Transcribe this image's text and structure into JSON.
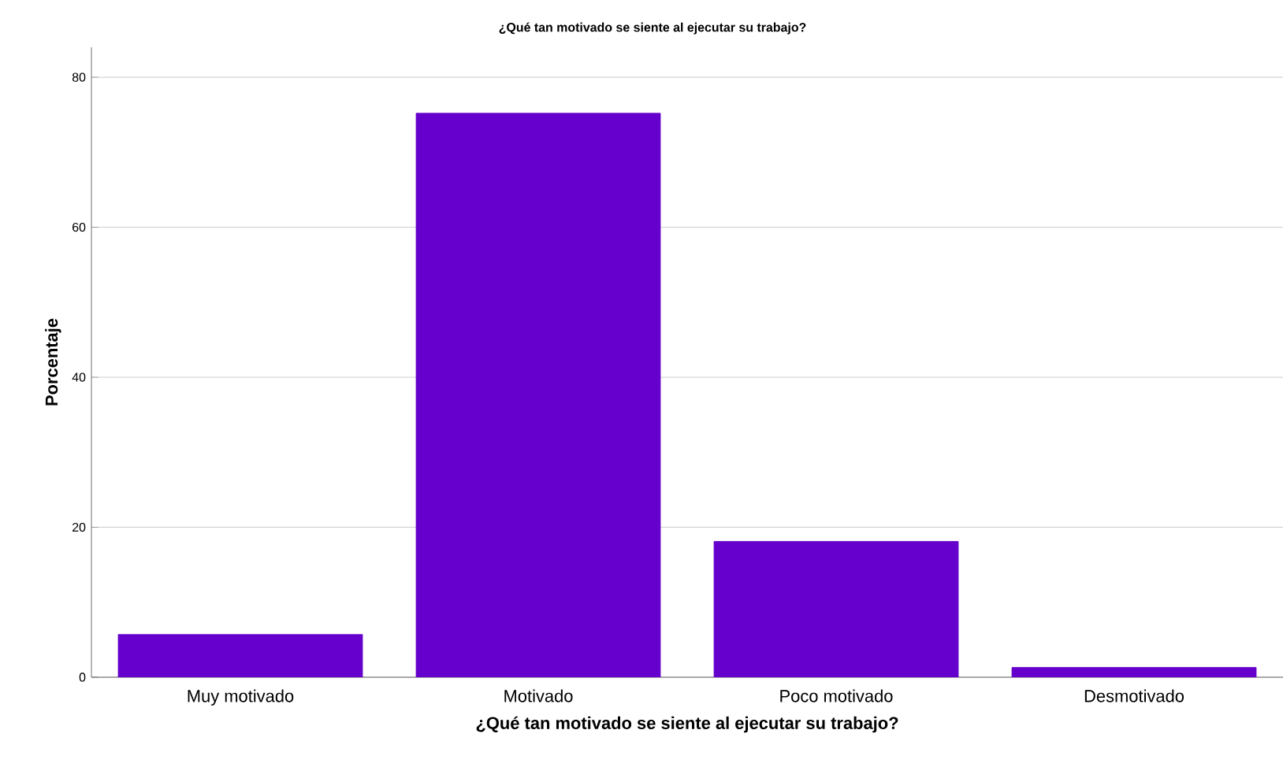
{
  "chart_data": {
    "type": "bar",
    "title": "¿Qué tan motivado se siente al ejecutar su trabajo?",
    "xlabel": "¿Qué tan motivado se siente al ejecutar su trabajo?",
    "ylabel": "Porcentaje",
    "categories": [
      "Muy motivado",
      "Motivado",
      "Poco motivado",
      "Desmotivado"
    ],
    "values": [
      5.7,
      75.2,
      18.1,
      1.3
    ],
    "color": "#6600cc",
    "ylim": [
      0,
      84
    ],
    "yticks": [
      0,
      20,
      40,
      60,
      80
    ],
    "grid": "y"
  }
}
